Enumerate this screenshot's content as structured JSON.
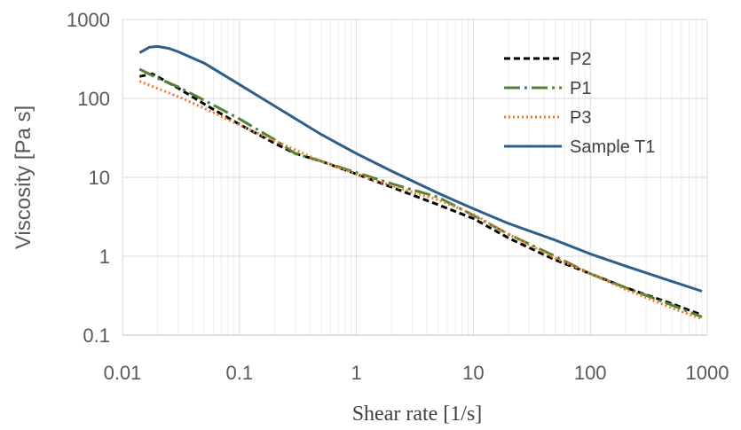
{
  "chart_data": {
    "type": "line",
    "title": "",
    "xlabel": "Shear rate [1/s]",
    "ylabel": "Viscosity [Pa s]",
    "xscale": "log",
    "yscale": "log",
    "xlim": [
      0.01,
      1000
    ],
    "ylim": [
      0.1,
      1000
    ],
    "x_ticks": [
      "0.01",
      "0.1",
      "1",
      "10",
      "100",
      "1000"
    ],
    "y_ticks": [
      "0.1",
      "1",
      "10",
      "100",
      "1000"
    ],
    "grid": "major and minor",
    "legend_position": "top-right",
    "series": [
      {
        "name": "P2",
        "color": "#000000",
        "style": "dashed",
        "x": [
          0.014,
          0.018,
          0.03,
          0.05,
          0.1,
          0.2,
          0.3,
          0.5,
          1,
          2,
          5,
          10,
          20,
          50,
          100,
          200,
          500,
          900
        ],
        "y": [
          190,
          205,
          135,
          85,
          47,
          27,
          20,
          16,
          11,
          7.5,
          4.5,
          3,
          1.7,
          0.9,
          0.6,
          0.4,
          0.25,
          0.18
        ]
      },
      {
        "name": "P1",
        "color": "#548235",
        "style": "dashdot",
        "x": [
          0.014,
          0.02,
          0.03,
          0.05,
          0.1,
          0.2,
          0.3,
          0.5,
          1,
          2,
          5,
          10,
          20,
          50,
          100,
          200,
          500,
          900
        ],
        "y": [
          235,
          180,
          140,
          95,
          55,
          30,
          20,
          16,
          11.5,
          8.3,
          5.6,
          3.3,
          1.9,
          1.0,
          0.6,
          0.4,
          0.24,
          0.17
        ]
      },
      {
        "name": "P3",
        "color": "#ED7D31",
        "style": "dotted",
        "x": [
          0.014,
          0.03,
          0.05,
          0.1,
          0.2,
          0.5,
          1,
          2,
          5,
          10,
          20,
          50,
          100,
          200,
          500,
          900
        ],
        "y": [
          165,
          105,
          75,
          46,
          29,
          16,
          11,
          7.8,
          5.2,
          3.4,
          1.9,
          0.95,
          0.6,
          0.38,
          0.22,
          0.16
        ]
      },
      {
        "name": "Sample T1",
        "color": "#2E5F8A",
        "style": "solid",
        "x": [
          0.014,
          0.017,
          0.02,
          0.025,
          0.03,
          0.05,
          0.1,
          0.2,
          0.5,
          1,
          2,
          5,
          10,
          20,
          50,
          100,
          200,
          500,
          900
        ],
        "y": [
          380,
          445,
          455,
          430,
          390,
          280,
          150,
          80,
          35,
          20,
          12,
          6.3,
          4.0,
          2.6,
          1.6,
          1.07,
          0.75,
          0.48,
          0.36
        ]
      }
    ]
  }
}
